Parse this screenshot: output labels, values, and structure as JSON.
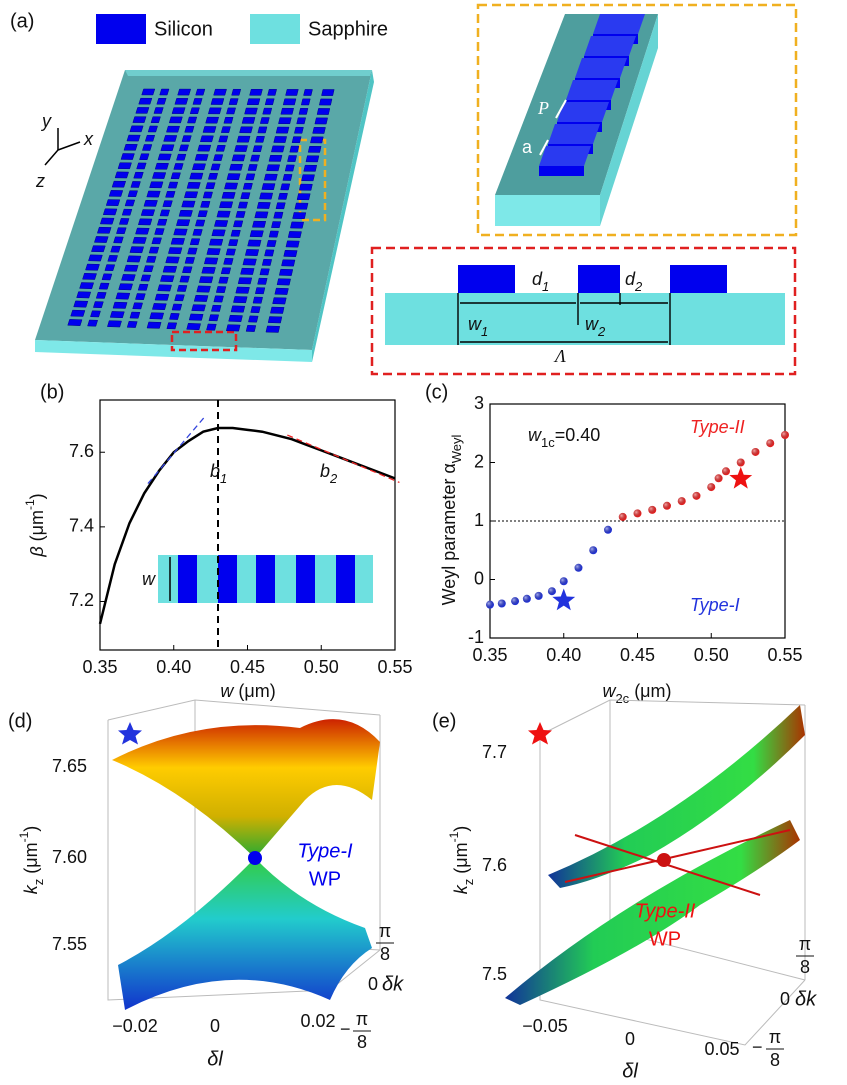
{
  "panel_labels": [
    "(a)",
    "(b)",
    "(c)",
    "(d)",
    "(e)"
  ],
  "legend": [
    {
      "name": "Silicon",
      "color": "#0000ee"
    },
    {
      "name": "Sapphire",
      "color": "#6ee0e0"
    }
  ],
  "axes_triad": {
    "y": "y",
    "x": "x",
    "z": "z"
  },
  "inset": {
    "period": "P",
    "width": "a"
  },
  "cross_section": {
    "d1": [
      "d",
      "1"
    ],
    "d2": [
      "d",
      "2"
    ],
    "w1": [
      "w",
      "1"
    ],
    "w2": [
      "w",
      "2"
    ],
    "period": "Λ"
  },
  "chart_data": [
    {
      "type": "line",
      "x_label": [
        "w",
        "(μm)"
      ],
      "y_label": [
        "β",
        "(μm",
        "-1",
        ")"
      ],
      "x": [
        0.35,
        0.36,
        0.37,
        0.38,
        0.39,
        0.4,
        0.41,
        0.42,
        0.43,
        0.44,
        0.45,
        0.46,
        0.47,
        0.48,
        0.49,
        0.5,
        0.51,
        0.52,
        0.53,
        0.54,
        0.55
      ],
      "series": [
        {
          "color": "#000000",
          "values": [
            7.14,
            7.3,
            7.41,
            7.49,
            7.55,
            7.6,
            7.63,
            7.655,
            7.665,
            7.665,
            7.66,
            7.655,
            7.645,
            7.635,
            7.62,
            7.605,
            7.59,
            7.575,
            7.56,
            7.545,
            7.53
          ]
        }
      ],
      "tangents": [
        {
          "color": "#3344dd",
          "x": [
            0.3825,
            0.421
          ],
          "values": [
            7.516,
            7.695
          ]
        },
        {
          "color": "#ee2222",
          "x": [
            0.477,
            0.553
          ],
          "values": [
            7.646,
            7.519
          ]
        }
      ],
      "vline": 0.43,
      "annotations": [
        [
          "b",
          "1"
        ],
        [
          "b",
          "2"
        ]
      ],
      "inset_label": "w",
      "xlim": [
        0.35,
        0.55
      ],
      "ylim": [
        7.07,
        7.74
      ],
      "xticks": [
        0.35,
        {
          "value": 0.4,
          "label": "0.40"
        },
        0.45,
        {
          "value": 0.5,
          "label": "0.50"
        },
        0.55
      ],
      "yticks": [
        7.2,
        7.4,
        7.6
      ]
    },
    {
      "type": "scatter",
      "x_label": [
        "w",
        "2c",
        "(μm)"
      ],
      "y_label": [
        "Weyl parameter α",
        "Weyl"
      ],
      "series": [
        {
          "color": "#2233dd",
          "x": [
            0.35,
            0.358,
            0.367,
            0.375,
            0.383,
            0.392,
            0.4,
            0.41,
            0.42,
            0.43
          ],
          "values": [
            -0.43,
            -0.41,
            -0.37,
            -0.33,
            -0.28,
            -0.2,
            -0.03,
            0.2,
            0.5,
            0.85
          ]
        },
        {
          "color": "#ee2222",
          "x": [
            0.44,
            0.45,
            0.46,
            0.47,
            0.48,
            0.49,
            0.5,
            0.505,
            0.51,
            0.52,
            0.53,
            0.54,
            0.55
          ],
          "values": [
            1.07,
            1.13,
            1.19,
            1.26,
            1.34,
            1.43,
            1.58,
            1.73,
            1.85,
            2.0,
            2.18,
            2.33,
            2.47
          ]
        }
      ],
      "highlights": [
        {
          "x": 0.4,
          "value": -0.36,
          "color": "#2233dd"
        },
        {
          "x": 0.52,
          "value": 1.72,
          "color": "#ee1111"
        }
      ],
      "hline": 1,
      "annotations": {
        "w1c": [
          "w",
          "1c",
          "=0.40"
        ],
        "type2": "Type-II",
        "type1": "Type-I"
      },
      "xlim": [
        0.35,
        0.55
      ],
      "ylim": [
        -1,
        3
      ],
      "xticks": [
        0.35,
        {
          "value": 0.4,
          "label": "0.40"
        },
        0.45,
        {
          "value": 0.5,
          "label": "0.50"
        },
        0.55
      ],
      "yticks": [
        -1,
        0,
        1,
        2,
        3
      ]
    }
  ],
  "panel_d": {
    "z_label": [
      "k",
      "z",
      "(μm",
      "-1",
      ")"
    ],
    "zticks": [
      "7.65",
      "7.60",
      "7.55"
    ],
    "xticks": [
      "−0.02",
      "0",
      "0.02"
    ],
    "x_label": "δl",
    "y_label": "δk",
    "yticks": {
      "pi": "π",
      "denominator": "8",
      "minus": "−",
      "zero": "0"
    },
    "annotation": [
      "Type-I",
      "WP"
    ]
  },
  "panel_e": {
    "z_label": [
      "k",
      "z",
      "(μm",
      "-1",
      ")"
    ],
    "zticks": [
      "7.7",
      "7.6",
      "7.5"
    ],
    "xticks": [
      "−0.05",
      "0",
      "0.05"
    ],
    "x_label": "δl",
    "y_label": "δk",
    "yticks": {
      "pi": "π",
      "denominator": "8",
      "minus": "−",
      "zero": "0"
    },
    "annotation": [
      "Type-II",
      "WP"
    ]
  }
}
